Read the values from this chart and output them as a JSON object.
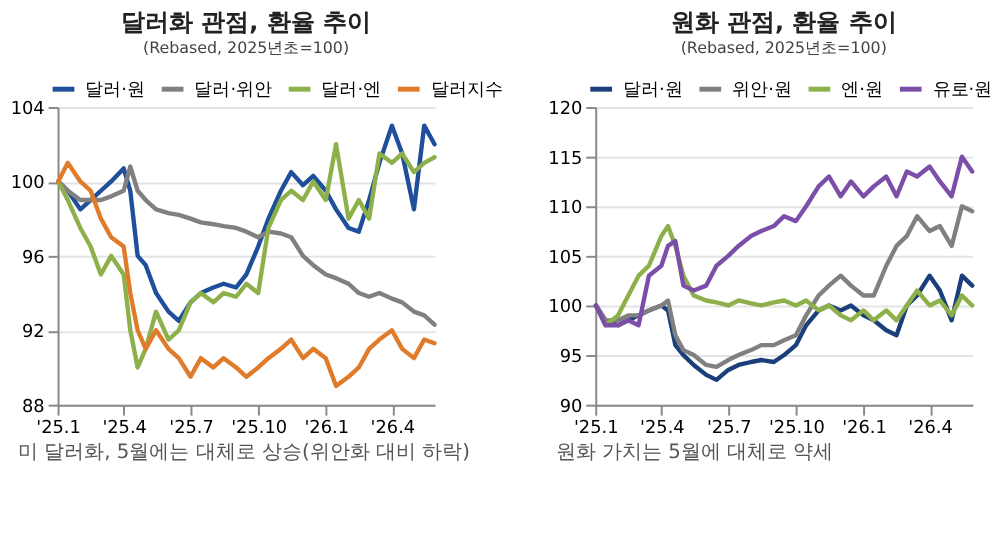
{
  "chart_data": [
    {
      "type": "line",
      "title": "달러화 관점, 환율 추이",
      "subtitle": "(Rebased, 2025년초=100)",
      "annotations": [
        "미 달러화, 5월에는 대체로 상승(위안화 대비 하락)"
      ],
      "legend": "top",
      "grid": "y",
      "xlim": [
        "2025-01-01",
        "2026-05-29"
      ],
      "xticks": [
        {
          "value": "2025-01",
          "label": "'25.1"
        },
        {
          "value": "2025-04",
          "label": "'25.4"
        },
        {
          "value": "2025-07",
          "label": "'25.7"
        },
        {
          "value": "2025-10",
          "label": "'25.10"
        },
        {
          "value": "2026-01",
          "label": "'26.1"
        },
        {
          "value": "2026-04",
          "label": "'26.4"
        }
      ],
      "ylim": [
        88,
        104
      ],
      "yticks": [
        88,
        92,
        96,
        100,
        104
      ],
      "x": [
        "2025-01-02",
        "2025-01-15",
        "2025-02-01",
        "2025-02-15",
        "2025-03-01",
        "2025-03-15",
        "2025-04-01",
        "2025-04-10",
        "2025-04-20",
        "2025-05-01",
        "2025-05-15",
        "2025-06-01",
        "2025-06-15",
        "2025-07-01",
        "2025-07-15",
        "2025-08-01",
        "2025-08-15",
        "2025-09-01",
        "2025-09-15",
        "2025-10-01",
        "2025-10-15",
        "2025-11-01",
        "2025-11-15",
        "2025-12-01",
        "2025-12-15",
        "2026-01-01",
        "2026-01-15",
        "2026-02-01",
        "2026-02-15",
        "2026-03-01",
        "2026-03-15",
        "2026-04-01",
        "2026-04-15",
        "2026-05-01",
        "2026-05-15",
        "2026-05-29"
      ],
      "series": [
        {
          "name": "달러·원",
          "color": "#1f4e9a",
          "values": [
            100,
            99.5,
            98.5,
            99,
            99.5,
            100,
            100.7,
            99.5,
            96,
            95.5,
            94,
            93,
            92.5,
            93.5,
            94,
            94.3,
            94.5,
            94.3,
            95,
            96.5,
            98,
            99.5,
            100.5,
            99.8,
            100.3,
            99.5,
            98.5,
            97.5,
            97.3,
            99,
            101,
            103,
            101.5,
            98.5,
            103,
            102
          ]
        },
        {
          "name": "달러·위안",
          "color": "#808080",
          "values": [
            100,
            99.5,
            99,
            99,
            99,
            99.2,
            99.5,
            100.8,
            99.5,
            99,
            98.5,
            98.3,
            98.2,
            98,
            97.8,
            97.7,
            97.6,
            97.5,
            97.3,
            97,
            97.3,
            97.2,
            97,
            96,
            95.5,
            95,
            94.8,
            94.5,
            94,
            93.8,
            94,
            93.7,
            93.5,
            93,
            92.8,
            92.3
          ]
        },
        {
          "name": "달러·엔",
          "color": "#8db04a",
          "values": [
            100,
            99,
            97.5,
            96.5,
            95,
            96,
            95,
            92,
            90,
            91,
            93,
            91.5,
            92,
            93.5,
            94,
            93.5,
            94,
            93.8,
            94.5,
            94,
            97.5,
            99,
            99.5,
            99,
            100,
            99,
            102,
            98,
            99,
            98,
            101.5,
            101,
            101.5,
            100.5,
            101,
            101.3
          ]
        },
        {
          "name": "달러지수",
          "color": "#e07b2a",
          "values": [
            100,
            101,
            100,
            99.5,
            98,
            97,
            96.5,
            94,
            92,
            91,
            92,
            91,
            90.5,
            89.5,
            90.5,
            90,
            90.5,
            90,
            89.5,
            90,
            90.5,
            91,
            91.5,
            90.5,
            91,
            90.5,
            89,
            89.5,
            90,
            91,
            91.5,
            92,
            91,
            90.5,
            91.5,
            91.3
          ]
        }
      ]
    },
    {
      "type": "line",
      "title": "원화 관점, 환율 추이",
      "subtitle": "(Rebased, 2025년초=100)",
      "annotations": [
        "원화 가치는 5월에 대체로 약세"
      ],
      "legend": "top",
      "grid": "y",
      "xlim": [
        "2025-01-01",
        "2026-05-29"
      ],
      "xticks": [
        {
          "value": "2025-01",
          "label": "'25.1"
        },
        {
          "value": "2025-04",
          "label": "'25.4"
        },
        {
          "value": "2025-07",
          "label": "'25.7"
        },
        {
          "value": "2025-10",
          "label": "'25.10"
        },
        {
          "value": "2026-01",
          "label": "'26.1"
        },
        {
          "value": "2026-04",
          "label": "'26.4"
        }
      ],
      "ylim": [
        90,
        120
      ],
      "yticks": [
        90,
        95,
        100,
        105,
        110,
        115,
        120
      ],
      "x": [
        "2025-01-02",
        "2025-01-15",
        "2025-02-01",
        "2025-02-15",
        "2025-03-01",
        "2025-03-15",
        "2025-04-01",
        "2025-04-10",
        "2025-04-20",
        "2025-05-01",
        "2025-05-15",
        "2025-06-01",
        "2025-06-15",
        "2025-07-01",
        "2025-07-15",
        "2025-08-01",
        "2025-08-15",
        "2025-09-01",
        "2025-09-15",
        "2025-10-01",
        "2025-10-15",
        "2025-11-01",
        "2025-11-15",
        "2025-12-01",
        "2025-12-15",
        "2026-01-01",
        "2026-01-15",
        "2026-02-01",
        "2026-02-15",
        "2026-03-01",
        "2026-03-15",
        "2026-04-01",
        "2026-04-15",
        "2026-05-01",
        "2026-05-15",
        "2026-05-29"
      ],
      "series": [
        {
          "name": "달러·원",
          "color": "#1a3f7a",
          "values": [
            100,
            98.5,
            98,
            98.5,
            99,
            99.5,
            100,
            99.5,
            96,
            95,
            94,
            93,
            92.5,
            93.5,
            94,
            94.3,
            94.5,
            94.3,
            95,
            96,
            98,
            99.5,
            100,
            99.5,
            100,
            99,
            98.5,
            97.5,
            97,
            100,
            101,
            103,
            101.5,
            98.5,
            103,
            102
          ]
        },
        {
          "name": "위안·원",
          "color": "#808080",
          "values": [
            100,
            98.5,
            98.5,
            99,
            99,
            99.5,
            100,
            100.5,
            97,
            95.5,
            95,
            94,
            93.8,
            94.5,
            95,
            95.5,
            96,
            96,
            96.5,
            97,
            99,
            101,
            102,
            103,
            102,
            101,
            101,
            104,
            106,
            107,
            109,
            107.5,
            108,
            106,
            110,
            109.5
          ]
        },
        {
          "name": "엔·원",
          "color": "#8db04a",
          "values": [
            100,
            98,
            99,
            101,
            103,
            104,
            107,
            108,
            106,
            103,
            101,
            100.5,
            100.3,
            100,
            100.5,
            100.2,
            100,
            100.3,
            100.5,
            100,
            100.5,
            99.5,
            100,
            99,
            98.5,
            99.5,
            98.5,
            99.5,
            98.5,
            100,
            101.5,
            100,
            100.5,
            99,
            101,
            100
          ]
        },
        {
          "name": "유로·원",
          "color": "#7b4fa8",
          "values": [
            100,
            98,
            98,
            98.5,
            98,
            103,
            104,
            106,
            106.5,
            102,
            101.5,
            102,
            104,
            105,
            106,
            107,
            107.5,
            108,
            109,
            108.5,
            110,
            112,
            113,
            111,
            112.5,
            111,
            112,
            113,
            111,
            113.5,
            113,
            114,
            112.5,
            111,
            115,
            113.5
          ]
        }
      ]
    }
  ]
}
